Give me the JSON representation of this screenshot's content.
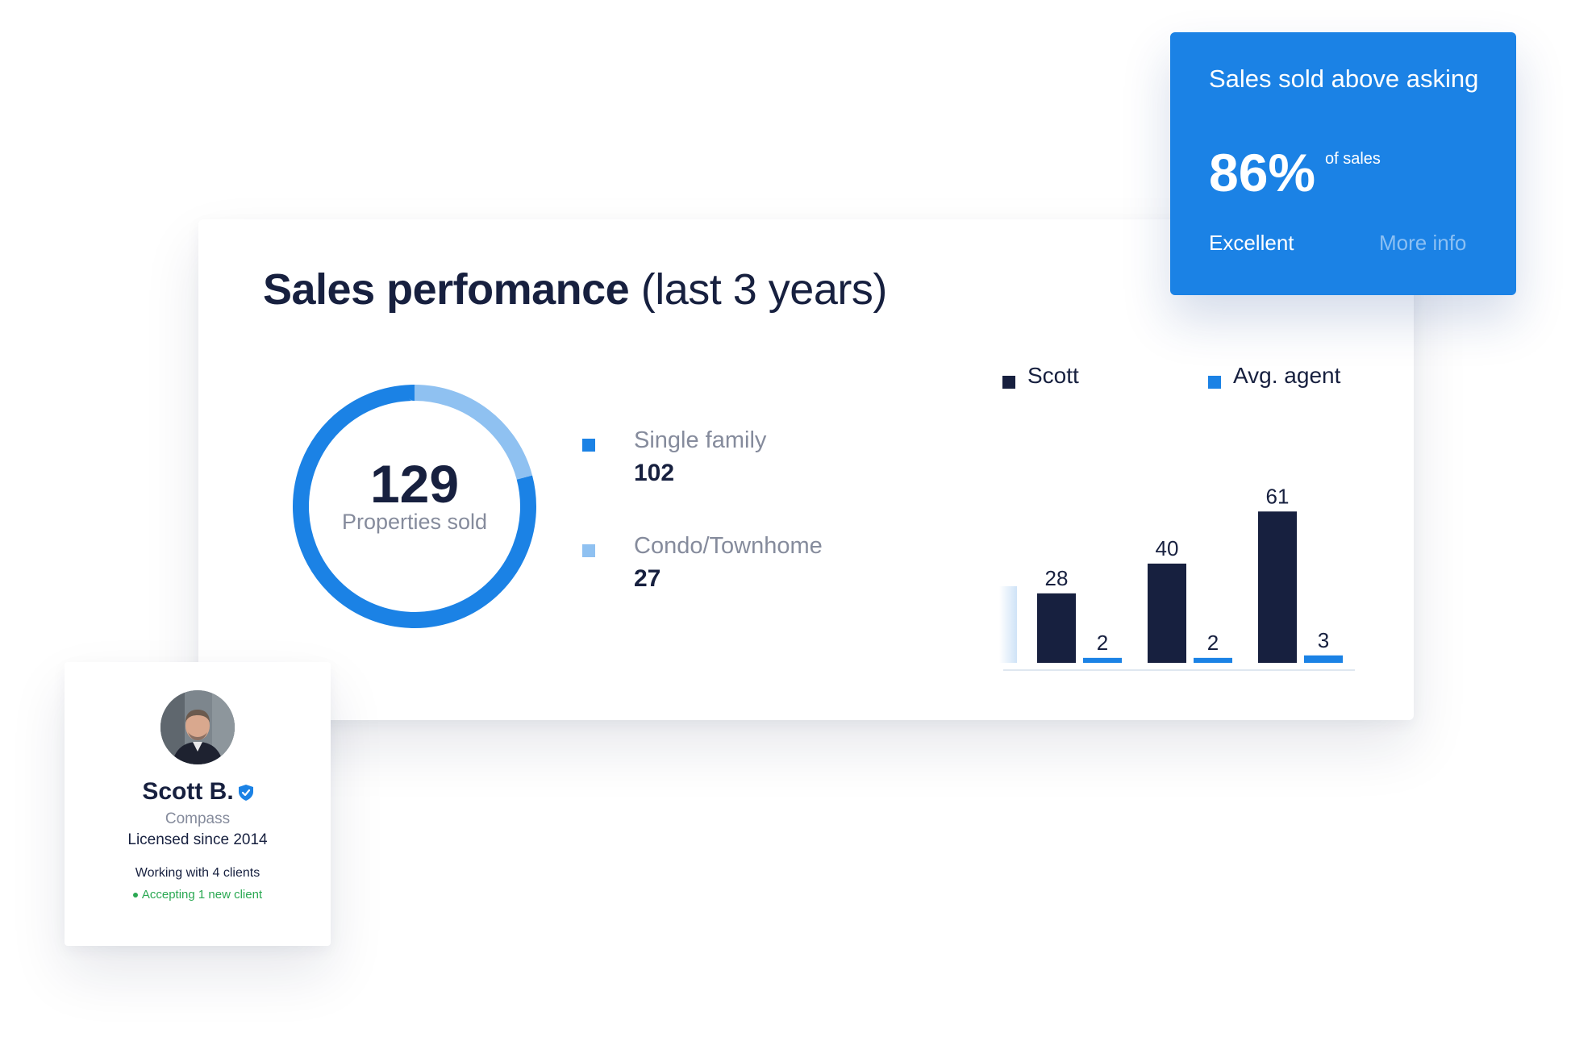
{
  "sales_card": {
    "title_bold": "Sales perfomance",
    "title_light": "(last 3 years)",
    "donut": {
      "total": "129",
      "caption": "Properties sold",
      "segments": [
        {
          "label": "Single family",
          "value": 102,
          "color": "#1b82e5"
        },
        {
          "label": "Condo/Townhome",
          "value": 27,
          "color": "#8fc1f1"
        }
      ]
    },
    "breakdown": [
      {
        "label": "Single family",
        "value": "102"
      },
      {
        "label": "Condo/Townhome",
        "value": "27"
      }
    ],
    "legend": [
      {
        "label": "Scott",
        "color": "#17203f"
      },
      {
        "label": "Avg. agent",
        "color": "#1b82e5"
      }
    ]
  },
  "chart_data": {
    "type": "bar",
    "categories": [
      "",
      "",
      ""
    ],
    "series": [
      {
        "name": "Scott",
        "values": [
          28,
          40,
          61
        ],
        "color": "#17203f"
      },
      {
        "name": "Avg. agent",
        "values": [
          2,
          2,
          3
        ],
        "color": "#1b82e5"
      }
    ],
    "title": "",
    "xlabel": "",
    "ylabel": "",
    "ylim": [
      0,
      65
    ],
    "grid": false,
    "legend": "top"
  },
  "stat_card": {
    "title": "Sales sold above asking",
    "value": "86%",
    "unit": "of sales",
    "rating": "Excellent",
    "link": "More info"
  },
  "agent_card": {
    "name": "Scott B.",
    "company": "Compass",
    "licensed": "Licensed since 2014",
    "clients": "Working with 4 clients",
    "accepting": "Accepting 1 new client"
  }
}
